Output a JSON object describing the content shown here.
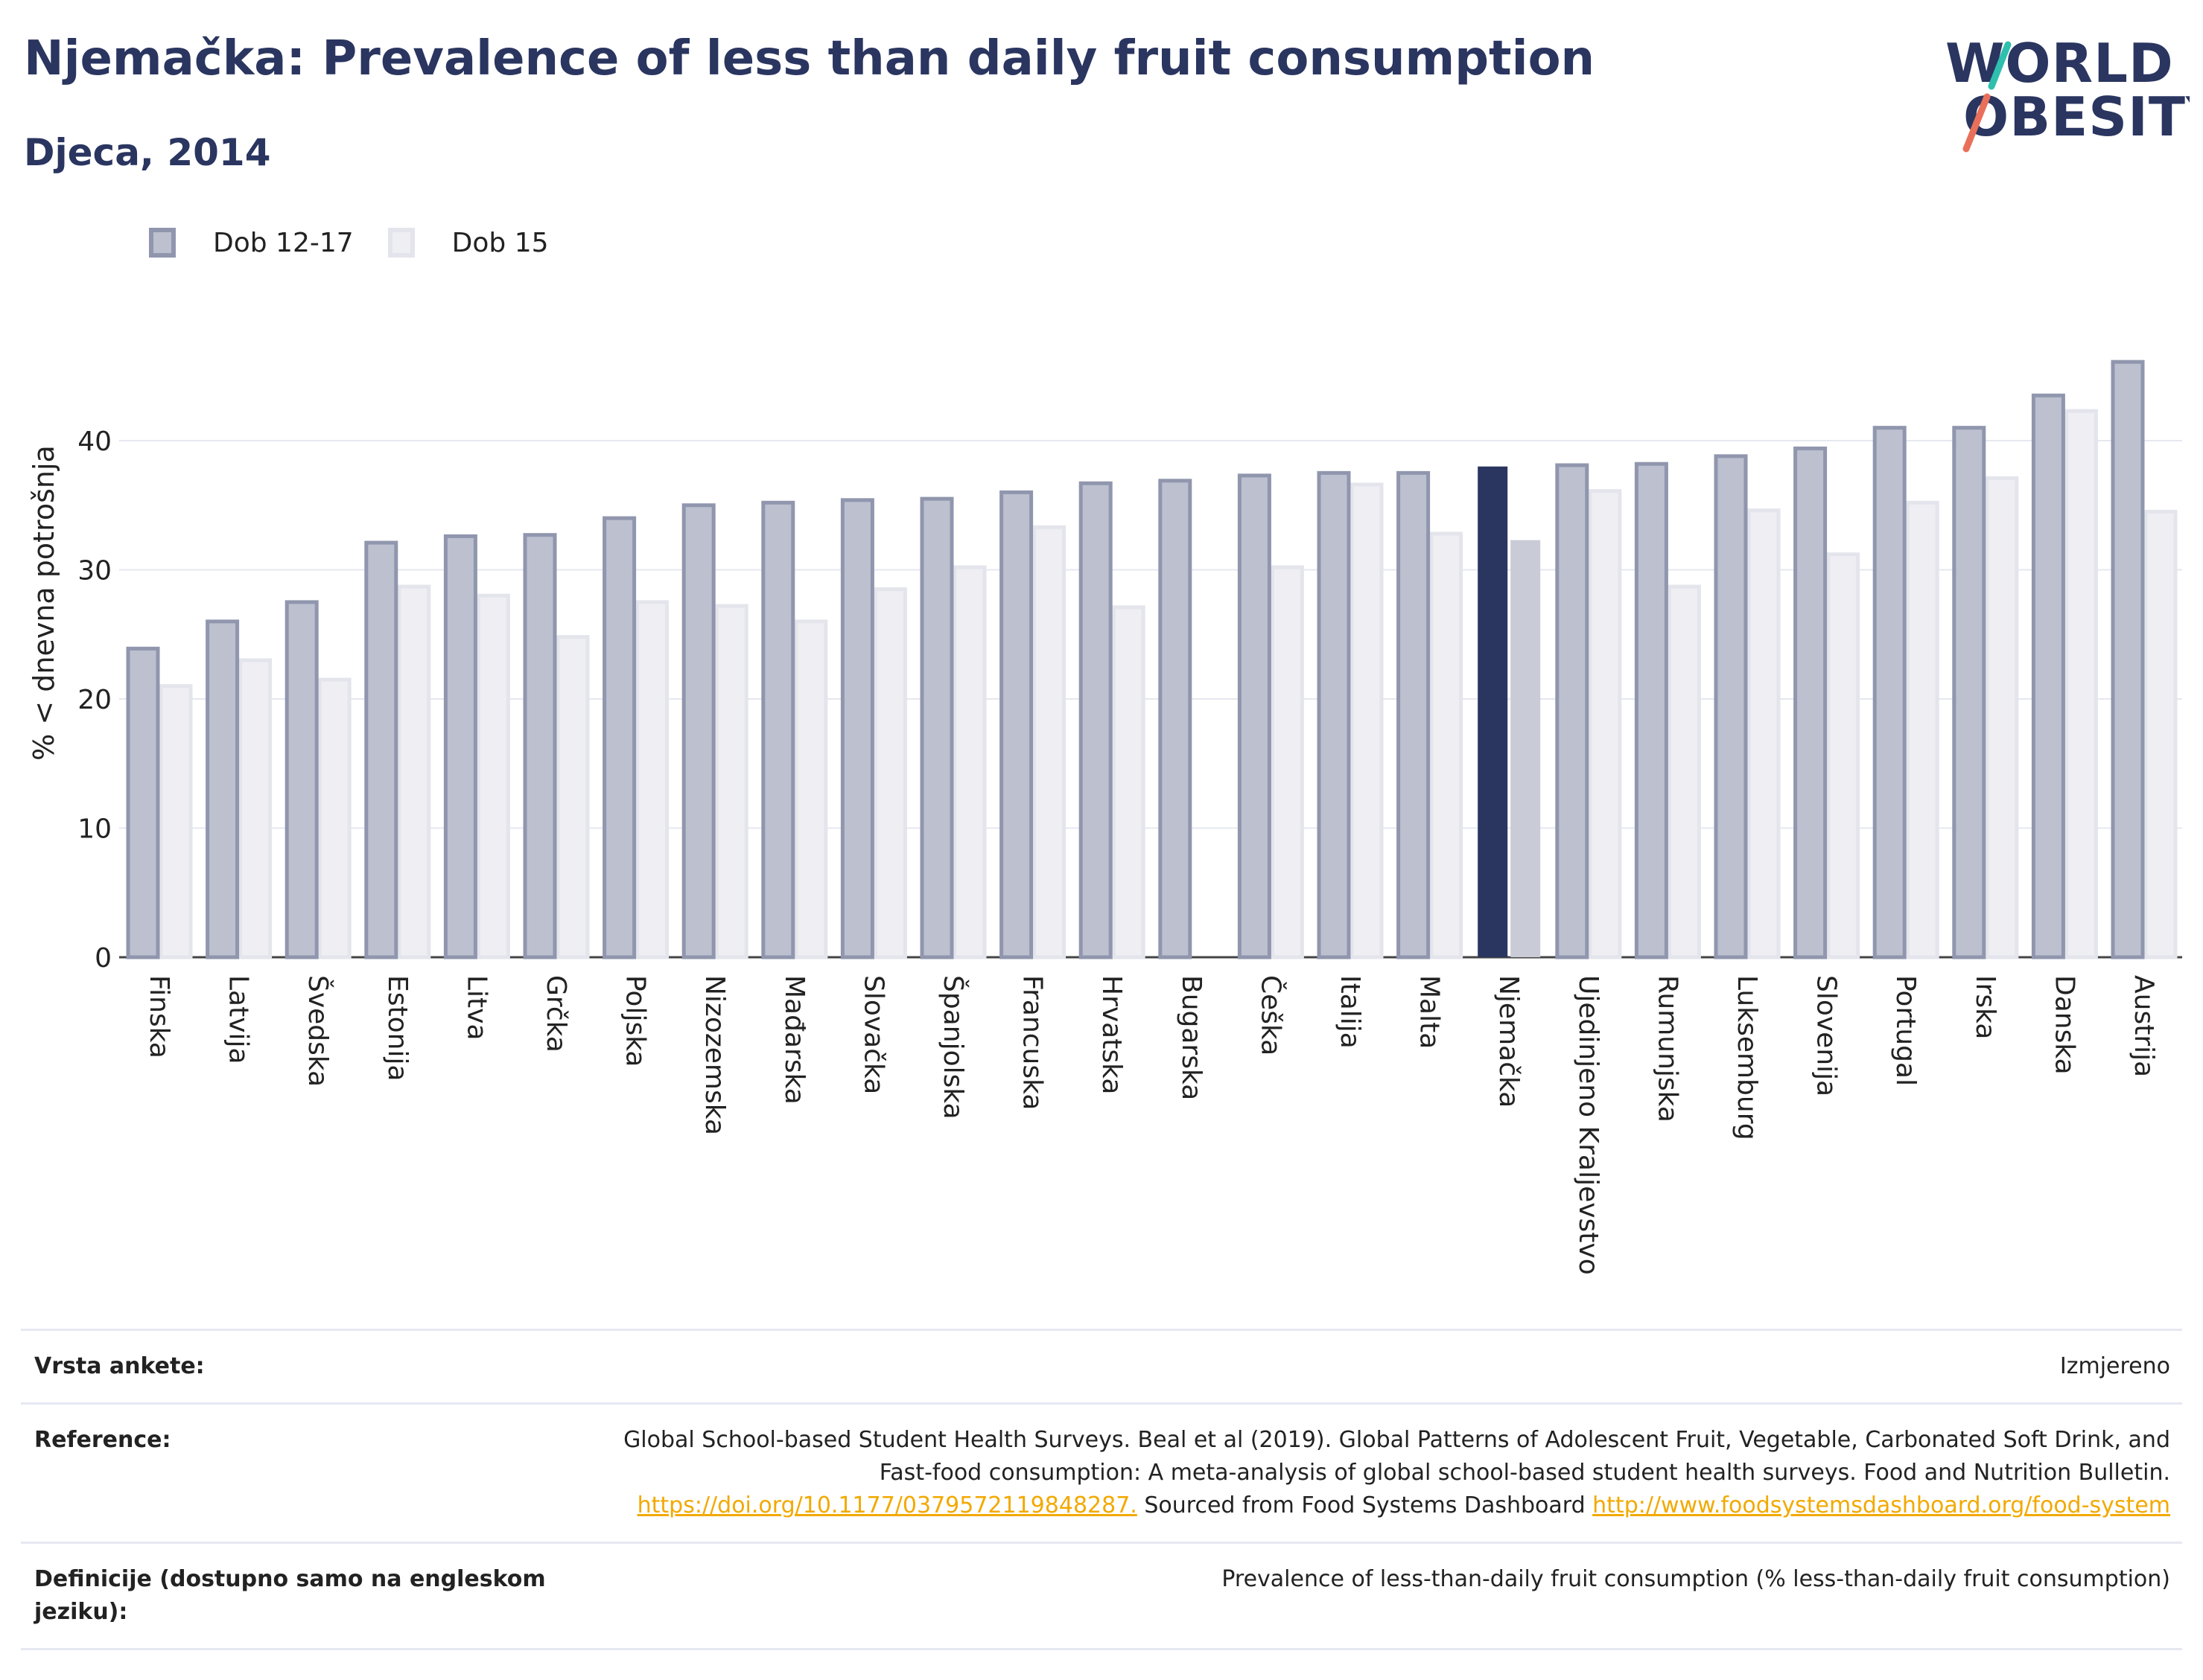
{
  "header": {
    "title": "Njemačka: Prevalence of less than daily fruit consumption",
    "subtitle": "Djeca, 2014",
    "logo_top": "WORLD",
    "logo_bottom": "OBESITY"
  },
  "legend": {
    "series_a": "Dob 12-17",
    "series_b": "Dob 15"
  },
  "colors": {
    "series_a_fill": "#bcc0cf",
    "series_a_stroke": "#9096ad",
    "series_b_fill": "#eeeef3",
    "series_b_stroke": "#e4e5ec",
    "highlight_a": "#2a3560",
    "highlight_b": "#c9cbd6",
    "title": "#2a3560",
    "link": "#f2a900",
    "logo_accent_teal": "#2fbfae",
    "logo_accent_coral": "#e8705a"
  },
  "chart_data": {
    "type": "bar",
    "ylabel": "% < dnevna potrošnja",
    "xlabel": "",
    "ylim": [
      0,
      47
    ],
    "yticks": [
      0,
      10,
      20,
      30,
      40
    ],
    "grid": true,
    "legend_position": "top-left",
    "highlight": "Njemačka",
    "categories": [
      "Finska",
      "Latvija",
      "Švedska",
      "Estonija",
      "Litva",
      "Grčka",
      "Poljska",
      "Nizozemska",
      "Mađarska",
      "Slovačka",
      "Španjolska",
      "Francuska",
      "Hrvatska",
      "Bugarska",
      "Češka",
      "Italija",
      "Malta",
      "Njemačka",
      "Ujedinjeno Kraljevstvo",
      "Rumunjska",
      "Luksemburg",
      "Slovenija",
      "Portugal",
      "Irska",
      "Danska",
      "Austrija"
    ],
    "series": [
      {
        "name": "Dob 12-17",
        "values": [
          23.9,
          26.0,
          27.5,
          32.1,
          32.6,
          32.7,
          34.0,
          35.0,
          35.2,
          35.4,
          35.5,
          36.0,
          36.7,
          36.9,
          37.3,
          37.5,
          37.5,
          38.0,
          38.1,
          38.2,
          38.8,
          39.4,
          41.0,
          41.0,
          43.5,
          46.1
        ]
      },
      {
        "name": "Dob 15",
        "values": [
          21.0,
          23.0,
          21.5,
          28.7,
          28.0,
          24.8,
          27.5,
          27.2,
          26.0,
          28.5,
          30.2,
          33.3,
          27.1,
          null,
          30.2,
          36.6,
          32.8,
          32.3,
          36.1,
          28.7,
          34.6,
          31.2,
          35.2,
          37.1,
          42.3,
          34.5
        ]
      }
    ]
  },
  "meta": {
    "rows": [
      {
        "key": "Vrsta ankete:",
        "value": "Izmjereno"
      },
      {
        "key": "Reference:",
        "value_parts": [
          {
            "text": "Global School-based Student Health Surveys. Beal et al (2019). Global Patterns of Adolescent Fruit, Vegetable, Carbonated Soft Drink, and Fast-food consumption: A meta-analysis of global school-based student health surveys. Food and Nutrition Bulletin. ",
            "link": false
          },
          {
            "text": "https://doi.org/10.1177/0379572119848287.",
            "link": true
          },
          {
            "text": " Sourced from Food Systems Dashboard ",
            "link": false
          },
          {
            "text": "http://www.foodsystemsdashboard.org/food-system",
            "link": true
          }
        ]
      },
      {
        "key": "Definicije (dostupno samo na engleskom jeziku):",
        "value": "Prevalence of less-than-daily fruit consumption (% less-than-daily fruit consumption)"
      }
    ]
  }
}
